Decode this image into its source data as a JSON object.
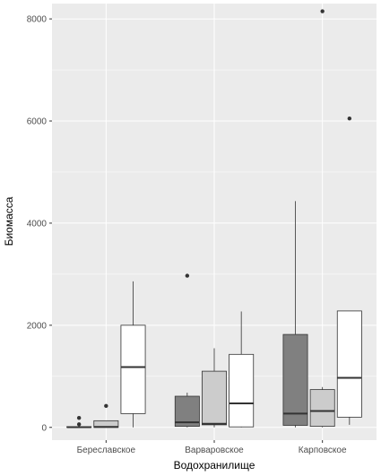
{
  "chart_data": {
    "type": "boxplot",
    "title": "",
    "xlabel": "Водохранилище",
    "ylabel": "Биомасса",
    "categories": [
      "Береславское",
      "Варваровское",
      "Карповское"
    ],
    "ylim": [
      -250,
      8300
    ],
    "yticks": [
      0,
      2000,
      4000,
      6000,
      8000
    ],
    "grid": true,
    "legend": "none",
    "groups": [
      {
        "fill": "#808080",
        "boxes": [
          {
            "category": "Береславское",
            "lower_whisker": 0,
            "q1": 0,
            "median": 5,
            "q3": 15,
            "upper_whisker": 20,
            "outliers": [
              60,
              185
            ]
          },
          {
            "category": "Варваровское",
            "lower_whisker": 0,
            "q1": 20,
            "median": 100,
            "q3": 610,
            "upper_whisker": 680,
            "outliers": [
              2970
            ]
          },
          {
            "category": "Карповское",
            "lower_whisker": 0,
            "q1": 40,
            "median": 270,
            "q3": 1820,
            "upper_whisker": 4430,
            "outliers": []
          }
        ]
      },
      {
        "fill": "#cccccc",
        "boxes": [
          {
            "category": "Береславское",
            "lower_whisker": 0,
            "q1": 0,
            "median": 10,
            "q3": 130,
            "upper_whisker": 130,
            "outliers": [
              420
            ]
          },
          {
            "category": "Варваровское",
            "lower_whisker": 0,
            "q1": 50,
            "median": 70,
            "q3": 1100,
            "upper_whisker": 1550,
            "outliers": []
          },
          {
            "category": "Карповское",
            "lower_whisker": 0,
            "q1": 20,
            "median": 320,
            "q3": 740,
            "upper_whisker": 790,
            "outliers": [
              8150
            ]
          }
        ]
      },
      {
        "fill": "#ffffff",
        "boxes": [
          {
            "category": "Береславское",
            "lower_whisker": 0,
            "q1": 270,
            "median": 1180,
            "q3": 2000,
            "upper_whisker": 2860,
            "outliers": []
          },
          {
            "category": "Варваровское",
            "lower_whisker": 0,
            "q1": 10,
            "median": 470,
            "q3": 1430,
            "upper_whisker": 2270,
            "outliers": []
          },
          {
            "category": "Карповское",
            "lower_whisker": 50,
            "q1": 200,
            "median": 970,
            "q3": 2280,
            "upper_whisker": 2280,
            "outliers": [
              6050
            ]
          }
        ]
      }
    ]
  },
  "colors": {
    "panel_background": "#ebebeb",
    "grid_major": "#ffffff",
    "box_outline": "#333333",
    "tick_text": "#4d4d4d"
  }
}
